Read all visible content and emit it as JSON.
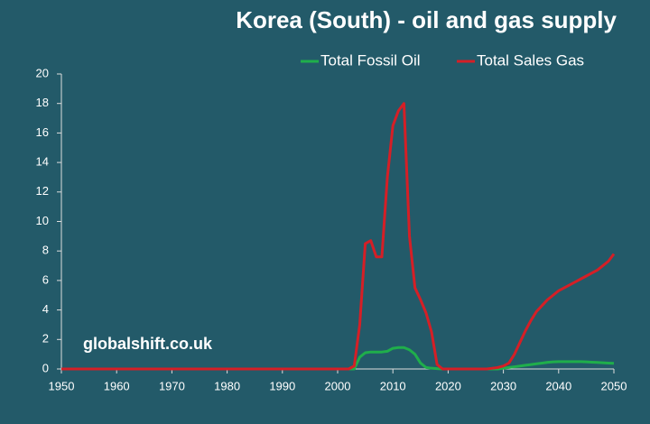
{
  "chart_data": {
    "type": "line",
    "title": "Korea (South) - oil and gas supply",
    "annotation": "globalshift.co.uk",
    "x": [
      1950,
      1951,
      1952,
      1953,
      1954,
      1955,
      1956,
      1957,
      1958,
      1959,
      1960,
      1961,
      1962,
      1963,
      1964,
      1965,
      1966,
      1967,
      1968,
      1969,
      1970,
      1971,
      1972,
      1973,
      1974,
      1975,
      1976,
      1977,
      1978,
      1979,
      1980,
      1981,
      1982,
      1983,
      1984,
      1985,
      1986,
      1987,
      1988,
      1989,
      1990,
      1991,
      1992,
      1993,
      1994,
      1995,
      1996,
      1997,
      1998,
      1999,
      2000,
      2001,
      2002,
      2003,
      2004,
      2005,
      2006,
      2007,
      2008,
      2009,
      2010,
      2011,
      2012,
      2013,
      2014,
      2015,
      2016,
      2017,
      2018,
      2019,
      2020,
      2021,
      2022,
      2023,
      2024,
      2025,
      2026,
      2027,
      2028,
      2029,
      2030,
      2031,
      2032,
      2033,
      2034,
      2035,
      2036,
      2037,
      2038,
      2039,
      2040,
      2041,
      2042,
      2043,
      2044,
      2045,
      2046,
      2047,
      2048,
      2049,
      2050
    ],
    "series": [
      {
        "name": "Total Fossil Oil",
        "color": "#1fae4b",
        "values": [
          0,
          0,
          0,
          0,
          0,
          0,
          0,
          0,
          0,
          0,
          0,
          0,
          0,
          0,
          0,
          0,
          0,
          0,
          0,
          0,
          0,
          0,
          0,
          0,
          0,
          0,
          0,
          0,
          0,
          0,
          0,
          0,
          0,
          0,
          0,
          0,
          0,
          0,
          0,
          0,
          0,
          0,
          0,
          0,
          0,
          0,
          0,
          0,
          0,
          0,
          0,
          0,
          0,
          0,
          0.8,
          1.1,
          1.15,
          1.15,
          1.15,
          1.2,
          1.4,
          1.45,
          1.45,
          1.3,
          1.0,
          0.4,
          0.1,
          0.05,
          0.02,
          0,
          0,
          0,
          0,
          0,
          0,
          0,
          0,
          0,
          0,
          0,
          0.05,
          0.1,
          0.15,
          0.2,
          0.25,
          0.3,
          0.35,
          0.4,
          0.45,
          0.48,
          0.5,
          0.5,
          0.5,
          0.5,
          0.5,
          0.48,
          0.46,
          0.44,
          0.42,
          0.4,
          0.38
        ]
      },
      {
        "name": "Total Sales Gas",
        "color": "#d51f26",
        "values": [
          0,
          0,
          0,
          0,
          0,
          0,
          0,
          0,
          0,
          0,
          0,
          0,
          0,
          0,
          0,
          0,
          0,
          0,
          0,
          0,
          0,
          0,
          0,
          0,
          0,
          0,
          0,
          0,
          0,
          0,
          0,
          0,
          0,
          0,
          0,
          0,
          0,
          0,
          0,
          0,
          0,
          0,
          0,
          0,
          0,
          0,
          0,
          0,
          0,
          0,
          0,
          0,
          0,
          0.2,
          3,
          8.5,
          8.7,
          7.6,
          7.6,
          13,
          16.5,
          17.5,
          18,
          9,
          5.5,
          4.7,
          3.8,
          2.5,
          0.3,
          0,
          0,
          0,
          0,
          0,
          0,
          0,
          0,
          0,
          0.05,
          0.1,
          0.2,
          0.4,
          1.0,
          1.8,
          2.6,
          3.3,
          3.9,
          4.3,
          4.7,
          5.0,
          5.3,
          5.5,
          5.7,
          5.9,
          6.1,
          6.3,
          6.5,
          6.7,
          7.0,
          7.3,
          7.8
        ]
      }
    ],
    "xlim": [
      1950,
      2050
    ],
    "xticks": [
      1950,
      1960,
      1970,
      1980,
      1990,
      2000,
      2010,
      2020,
      2030,
      2040,
      2050
    ],
    "ylim": [
      0,
      20
    ],
    "yticks": [
      0,
      2,
      4,
      6,
      8,
      10,
      12,
      14,
      16,
      18,
      20
    ],
    "grid": false,
    "legend": "top-right"
  }
}
